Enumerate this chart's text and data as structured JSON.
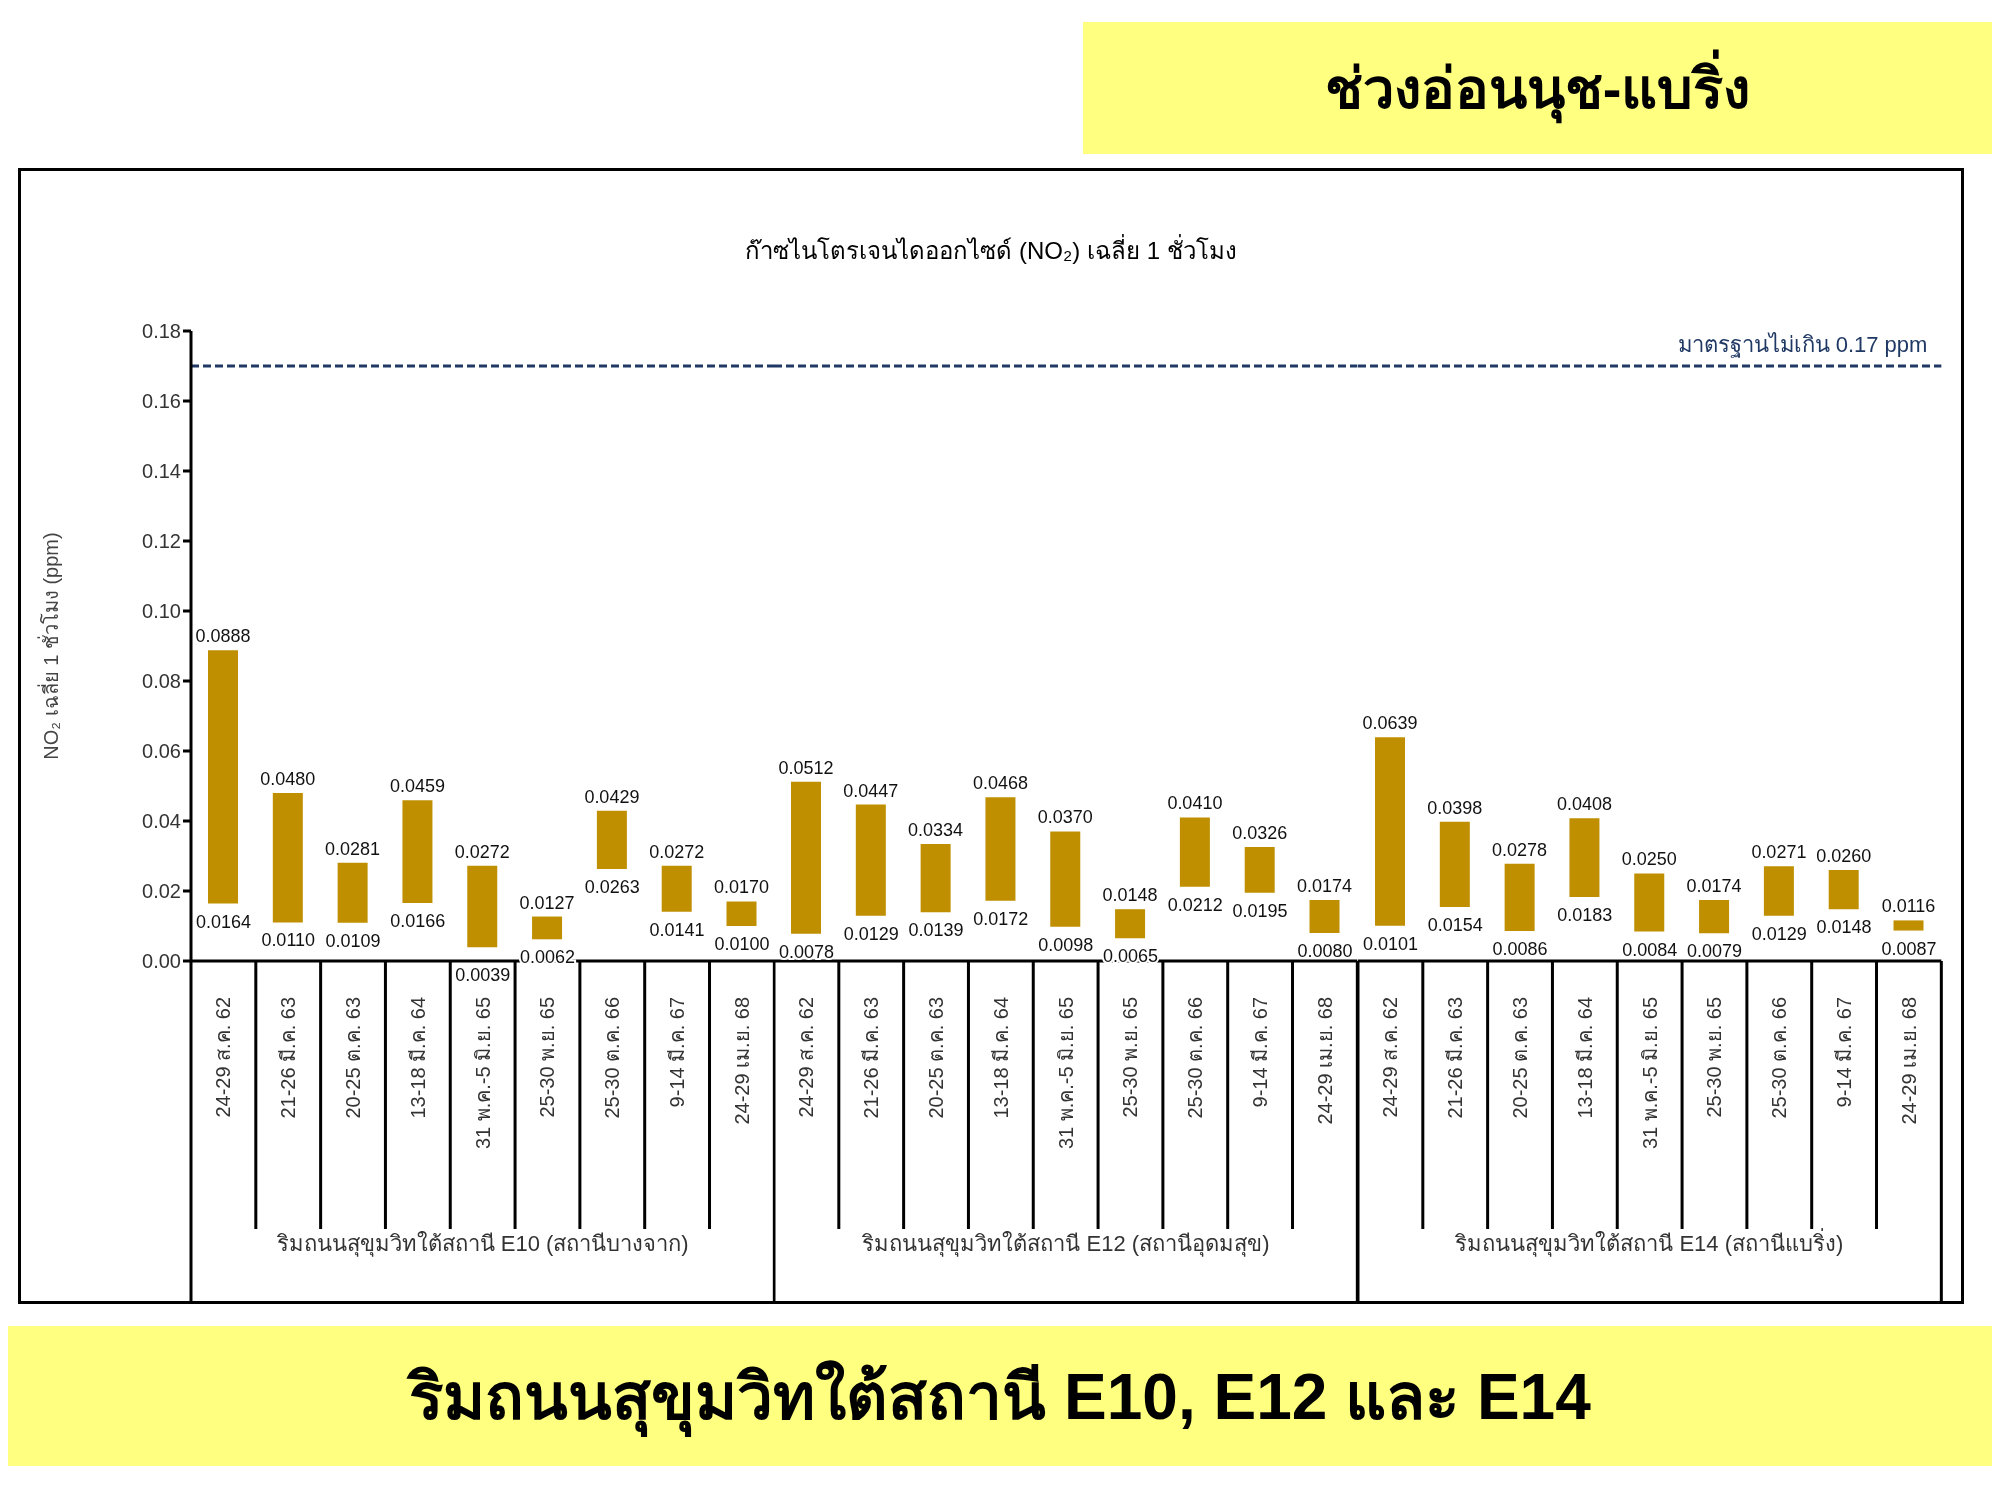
{
  "chart_data": [
    {
      "type": "bar",
      "grid": false,
      "legend": false,
      "ylabel": "NO₂ เฉลี่ย 1 ชั่วโมง (ppm)",
      "xlabel": "ริมถนนสุขุมวิทใต้สถานี E10 (สถานีบางจาก)",
      "categories": [
        "24-29 ส.ค. 62",
        "21-26 มี.ค. 63",
        "20-25 ต.ค. 63",
        "13-18 มี.ค. 64",
        "31 พ.ค.-5 มิ.ย. 65",
        "25-30 พ.ย. 65",
        "25-30 ต.ค. 66",
        "9-14 มี.ค. 67",
        "24-29 เม.ย. 68"
      ],
      "base": [
        0.0164,
        0.011,
        0.0109,
        0.0166,
        0.0039,
        0.0062,
        0.0263,
        0.0141,
        0.01
      ],
      "values": [
        0.0724,
        0.037,
        0.0172,
        0.0293,
        0.0233,
        0.0065,
        0.0166,
        0.0131,
        0.007
      ],
      "value_labels": [
        "0.0888",
        "0.0480",
        "0.0281",
        "0.0459",
        "0.0272",
        "0.0127",
        "0.0429",
        "0.0272",
        "0.0170"
      ],
      "color": "#bf8f00",
      "ylim": [
        0,
        0.18
      ],
      "yticks": [
        {
          "value": 0,
          "label": "0.00"
        },
        {
          "value": 0.02,
          "label": "0.02"
        },
        {
          "value": 0.04,
          "label": "0.04"
        },
        {
          "value": 0.06,
          "label": "0.06"
        },
        {
          "value": 0.08,
          "label": "0.08"
        },
        {
          "value": 0.1,
          "label": "0.10"
        },
        {
          "value": 0.12,
          "label": "0.12"
        },
        {
          "value": 0.14,
          "label": "0.14"
        },
        {
          "value": 0.16,
          "label": "0.16"
        },
        {
          "value": 0.18,
          "label": "0.18"
        }
      ],
      "ref_lines": [
        {
          "axis": "y",
          "value": 0.17,
          "color": "#1f3864",
          "line_style": "dashed"
        }
      ],
      "annotations": [
        "ริมถนนสุขุมวิทใต้สถานี E10, E12 และ E14",
        {
          "text": "0.0164",
          "x": "24-29 ส.ค. 62",
          "y": 0.0164
        },
        {
          "text": "0.0110",
          "x": "21-26 มี.ค. 63",
          "y": 0.011
        },
        {
          "text": "0.0109",
          "x": "20-25 ต.ค. 63",
          "y": 0.0109
        },
        {
          "text": "0.0166",
          "x": "13-18 มี.ค. 64",
          "y": 0.0166
        },
        {
          "text": "0.0039",
          "x": "31 พ.ค.-5 มิ.ย. 65",
          "y": 0.0039
        },
        {
          "text": "0.0062",
          "x": "25-30 พ.ย. 65",
          "y": 0.0062
        },
        {
          "text": "0.0263",
          "x": "25-30 ต.ค. 66",
          "y": 0.0263
        },
        {
          "text": "0.0141",
          "x": "9-14 มี.ค. 67",
          "y": 0.0141
        },
        {
          "text": "0.0100",
          "x": "24-29 เม.ย. 68",
          "y": 0.01
        }
      ]
    },
    {
      "type": "bar",
      "subtitle": "ก๊าซไนโตรเจนไดออกไซด์ (NO₂) เฉลี่ย 1 ชั่วโมง",
      "grid": false,
      "legend": false,
      "xlabel": "ริมถนนสุขุมวิทใต้สถานี E12 (สถานีอุดมสุข)",
      "tick_labels": "x",
      "categories": [
        "24-29 ส.ค. 62",
        "21-26 มี.ค. 63",
        "20-25 ต.ค. 63",
        "13-18 มี.ค. 64",
        "31 พ.ค.-5 มิ.ย. 65",
        "25-30 พ.ย. 65",
        "25-30 ต.ค. 66",
        "9-14 มี.ค. 67",
        "24-29 เม.ย. 68"
      ],
      "base": [
        0.0078,
        0.0129,
        0.0139,
        0.0172,
        0.0098,
        0.0065,
        0.0212,
        0.0195,
        0.008
      ],
      "values": [
        0.0434,
        0.0318,
        0.0195,
        0.0296,
        0.0272,
        0.0083,
        0.0198,
        0.0131,
        0.0094
      ],
      "value_labels": [
        "0.0512",
        "0.0447",
        "0.0334",
        "0.0468",
        "0.0370",
        "0.0148",
        "0.0410",
        "0.0326",
        "0.0174"
      ],
      "color": "#bf8f00",
      "ylim": [
        0,
        0.18
      ],
      "ref_lines": [
        {
          "axis": "y",
          "value": 0.17,
          "color": "#1f3864",
          "line_style": "dashed"
        }
      ],
      "annotations": [
        {
          "text": "0.0078",
          "x": "24-29 ส.ค. 62",
          "y": 0.0078
        },
        {
          "text": "0.0129",
          "x": "21-26 มี.ค. 63",
          "y": 0.0129
        },
        {
          "text": "0.0139",
          "x": "20-25 ต.ค. 63",
          "y": 0.0139
        },
        {
          "text": "0.0172",
          "x": "13-18 มี.ค. 64",
          "y": 0.0172
        },
        {
          "text": "0.0098",
          "x": "31 พ.ค.-5 มิ.ย. 65",
          "y": 0.0098
        },
        {
          "text": "0.0065",
          "x": "25-30 พ.ย. 65",
          "y": 0.0065
        },
        {
          "text": "0.0212",
          "x": "25-30 ต.ค. 66",
          "y": 0.0212
        },
        {
          "text": "0.0195",
          "x": "9-14 มี.ค. 67",
          "y": 0.0195
        },
        {
          "text": "0.0080",
          "x": "24-29 เม.ย. 68",
          "y": 0.008
        }
      ]
    },
    {
      "type": "bar",
      "title": "ช่วงอ่อนนุช-แบริ่ง",
      "grid": false,
      "legend": false,
      "xlabel": "ริมถนนสุขุมวิทใต้สถานี E14 (สถานีแบริ่ง)",
      "tick_labels": "x",
      "categories": [
        "24-29 ส.ค. 62",
        "21-26 มี.ค. 63",
        "20-25 ต.ค. 63",
        "13-18 มี.ค. 64",
        "31 พ.ค.-5 มิ.ย. 65",
        "25-30 พ.ย. 65",
        "25-30 ต.ค. 66",
        "9-14 มี.ค. 67",
        "24-29 เม.ย. 68"
      ],
      "base": [
        0.0101,
        0.0154,
        0.0086,
        0.0183,
        0.0084,
        0.0079,
        0.0129,
        0.0148,
        0.0087
      ],
      "values": [
        0.0538,
        0.0244,
        0.0192,
        0.0225,
        0.0166,
        0.0095,
        0.0142,
        0.0112,
        0.0029
      ],
      "value_labels": [
        "0.0639",
        "0.0398",
        "0.0278",
        "0.0408",
        "0.0250",
        "0.0174",
        "0.0271",
        "0.0260",
        "0.0116"
      ],
      "color": "#bf8f00",
      "ylim": [
        0,
        0.18
      ],
      "ref_lines": [
        {
          "axis": "y",
          "value": 0.17,
          "label": "มาตรฐานไม่เกิน 0.17 ppm",
          "color": "#1f3864",
          "line_style": "dashed"
        }
      ],
      "annotations": [
        {
          "text": "0.0101",
          "x": "24-29 ส.ค. 62",
          "y": 0.0101
        },
        {
          "text": "0.0154",
          "x": "21-26 มี.ค. 63",
          "y": 0.0154
        },
        {
          "text": "0.0086",
          "x": "20-25 ต.ค. 63",
          "y": 0.0086
        },
        {
          "text": "0.0183",
          "x": "13-18 มี.ค. 64",
          "y": 0.0183
        },
        {
          "text": "0.0084",
          "x": "31 พ.ค.-5 มิ.ย. 65",
          "y": 0.0084
        },
        {
          "text": "0.0079",
          "x": "25-30 พ.ย. 65",
          "y": 0.0079
        },
        {
          "text": "0.0129",
          "x": "25-30 ต.ค. 66",
          "y": 0.0129
        },
        {
          "text": "0.0148",
          "x": "9-14 มี.ค. 67",
          "y": 0.0148
        },
        {
          "text": "0.0087",
          "x": "24-29 เม.ย. 68",
          "y": 0.0087
        }
      ]
    }
  ]
}
